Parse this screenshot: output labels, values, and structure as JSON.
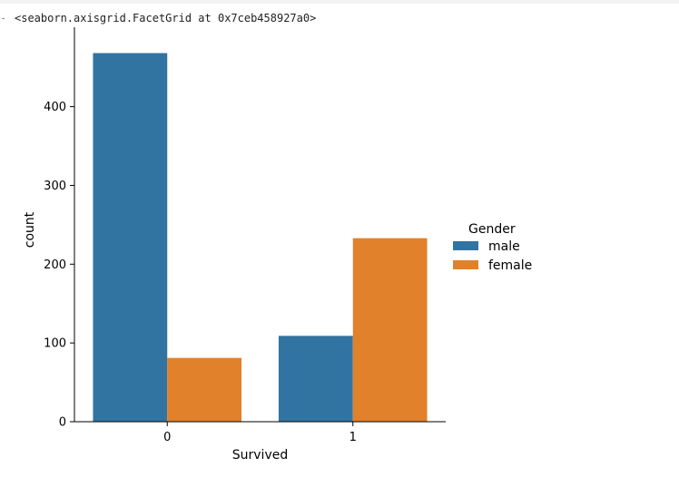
{
  "output": {
    "marker": "-",
    "text": "<seaborn.axisgrid.FacetGrid at 0x7ceb458927a0>"
  },
  "colors": {
    "male": "#3274a1",
    "female": "#e1812c",
    "axis": "#000000"
  },
  "chart_data": {
    "type": "bar",
    "title": "",
    "xlabel": "Survived",
    "ylabel": "count",
    "categories": [
      "0",
      "1"
    ],
    "ylim": [
      0,
      500
    ],
    "yticks": [
      0,
      100,
      200,
      300,
      400
    ],
    "legend_title": "Gender",
    "legend_position": "right",
    "grid": false,
    "series": [
      {
        "name": "male",
        "color": "#3274a1",
        "values": [
          468,
          109
        ]
      },
      {
        "name": "female",
        "color": "#e1812c",
        "values": [
          81,
          233
        ]
      }
    ]
  }
}
